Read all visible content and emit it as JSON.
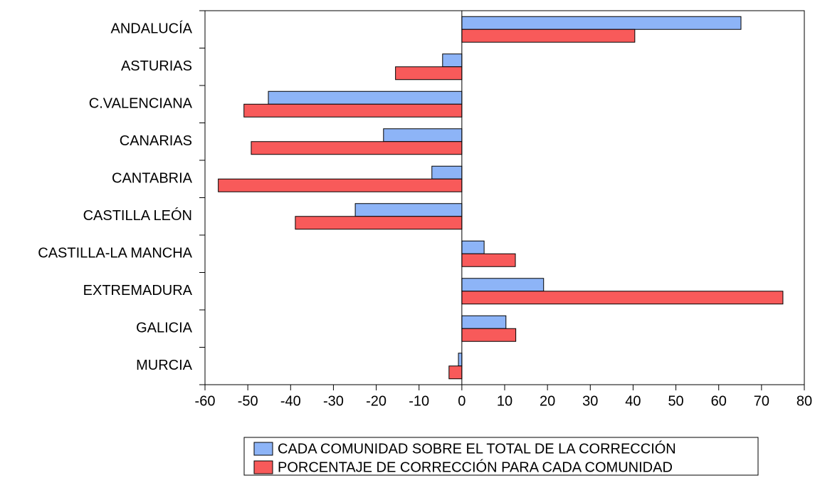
{
  "chart_data": {
    "type": "bar",
    "orientation": "horizontal",
    "categories": [
      "ANDALUCÍA",
      "ASTURIAS",
      "C.VALENCIANA",
      "CANARIAS",
      "CANTABRIA",
      "CASTILLA LEÓN",
      "CASTILLA-LA MANCHA",
      "EXTREMADURA",
      "GALICIA",
      "MURCIA"
    ],
    "series": [
      {
        "name": "CADA COMUNIDAD SOBRE EL TOTAL DE LA CORRECCIÓN",
        "color": "#8db4f7",
        "values": [
          65.2,
          -4.5,
          -45.2,
          -18.3,
          -7,
          -24.9,
          5.2,
          19.1,
          10.3,
          -0.8
        ]
      },
      {
        "name": "PORCENTAJE DE CORRECCIÓN PARA CADA COMUNIDAD",
        "color": "#f85a5a",
        "values": [
          40.4,
          -15.5,
          -50.9,
          -49.2,
          -56.9,
          -38.9,
          12.5,
          75,
          12.6,
          -3
        ]
      }
    ],
    "xlim": [
      -60,
      80
    ],
    "xticks": [
      -60,
      -50,
      -40,
      -30,
      -20,
      -10,
      0,
      10,
      20,
      30,
      40,
      50,
      60,
      70,
      80
    ],
    "legend": "bottom"
  }
}
